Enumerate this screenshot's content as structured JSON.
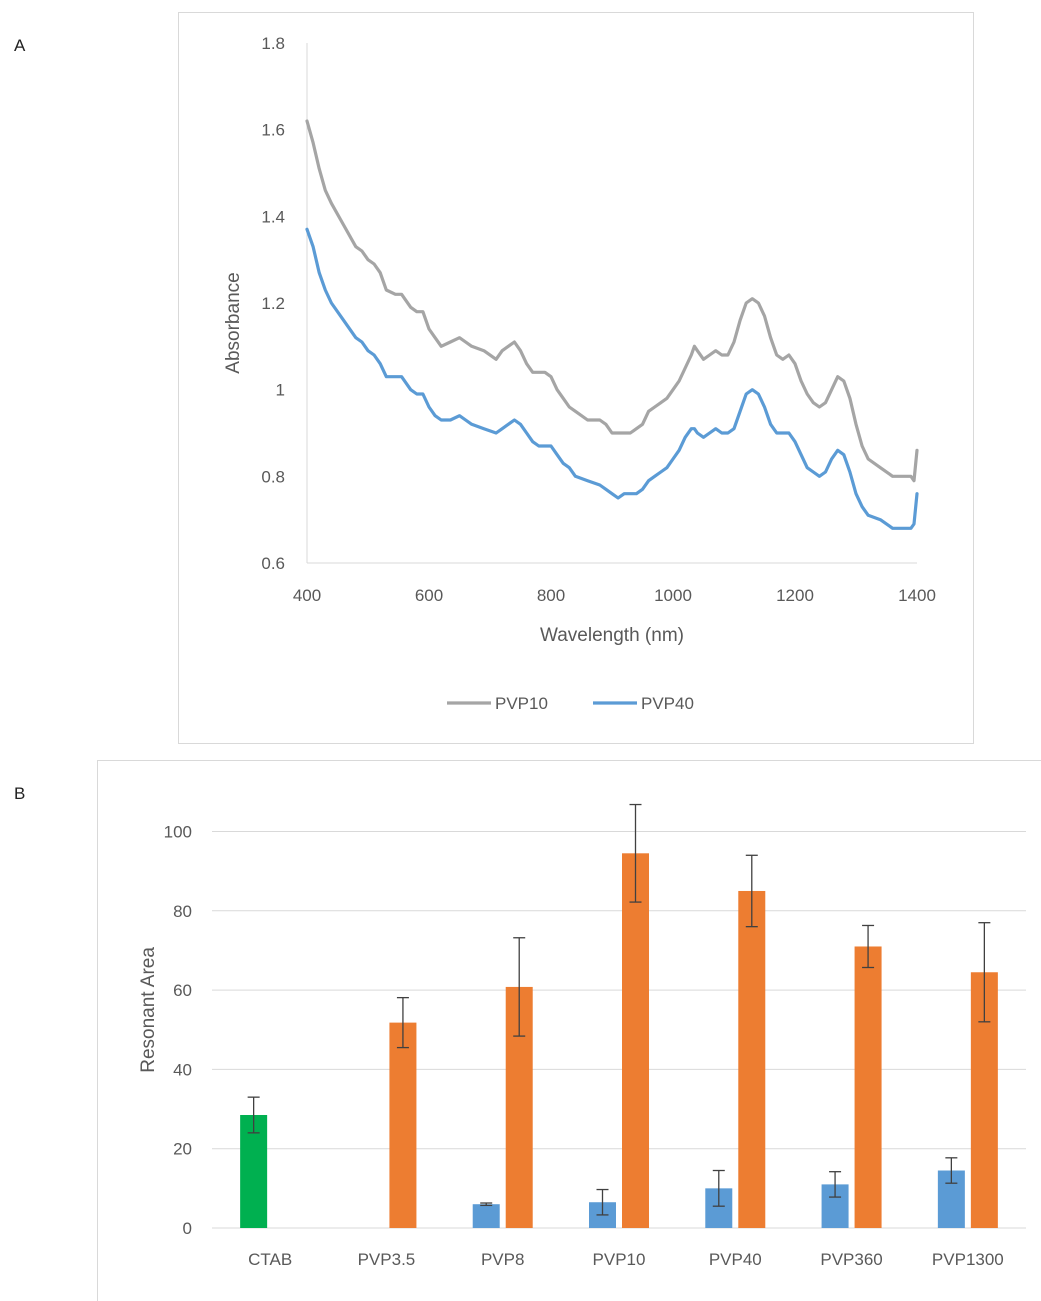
{
  "panels": [
    {
      "label": "A"
    },
    {
      "label": "B"
    }
  ],
  "chart_data": [
    {
      "type": "line",
      "title": "",
      "xlabel": "Wavelength (nm)",
      "ylabel": "Absorbance",
      "xlim": [
        400,
        1400
      ],
      "ylim": [
        0.6,
        1.8
      ],
      "xticks": [
        400,
        600,
        800,
        1000,
        1200,
        1400
      ],
      "yticks": [
        0.6,
        0.8,
        1,
        1.2,
        1.4,
        1.6,
        1.8
      ],
      "grid": false,
      "legend": "bottom",
      "series": [
        {
          "name": "PVP10",
          "color": "#a5a5a5",
          "x": [
            400,
            410,
            420,
            430,
            440,
            460,
            480,
            490,
            500,
            510,
            520,
            530,
            545,
            555,
            570,
            580,
            590,
            600,
            610,
            620,
            635,
            650,
            660,
            670,
            690,
            710,
            720,
            730,
            740,
            750,
            760,
            770,
            780,
            790,
            800,
            810,
            820,
            830,
            840,
            860,
            880,
            890,
            900,
            910,
            920,
            930,
            940,
            950,
            960,
            970,
            980,
            990,
            1000,
            1010,
            1020,
            1030,
            1035,
            1040,
            1050,
            1060,
            1070,
            1080,
            1090,
            1100,
            1110,
            1120,
            1130,
            1140,
            1150,
            1160,
            1170,
            1180,
            1190,
            1200,
            1210,
            1220,
            1230,
            1240,
            1250,
            1260,
            1270,
            1280,
            1290,
            1300,
            1310,
            1320,
            1340,
            1360,
            1370,
            1380,
            1390,
            1395,
            1400
          ],
          "y": [
            1.62,
            1.57,
            1.51,
            1.46,
            1.43,
            1.38,
            1.33,
            1.32,
            1.3,
            1.29,
            1.27,
            1.23,
            1.22,
            1.22,
            1.19,
            1.18,
            1.18,
            1.14,
            1.12,
            1.1,
            1.11,
            1.12,
            1.11,
            1.1,
            1.09,
            1.07,
            1.09,
            1.1,
            1.11,
            1.09,
            1.06,
            1.04,
            1.04,
            1.04,
            1.03,
            1.0,
            0.98,
            0.96,
            0.95,
            0.93,
            0.93,
            0.92,
            0.9,
            0.9,
            0.9,
            0.9,
            0.91,
            0.92,
            0.95,
            0.96,
            0.97,
            0.98,
            1.0,
            1.02,
            1.05,
            1.08,
            1.1,
            1.09,
            1.07,
            1.08,
            1.09,
            1.08,
            1.08,
            1.11,
            1.16,
            1.2,
            1.21,
            1.2,
            1.17,
            1.12,
            1.08,
            1.07,
            1.08,
            1.06,
            1.02,
            0.99,
            0.97,
            0.96,
            0.97,
            1.0,
            1.03,
            1.02,
            0.98,
            0.92,
            0.87,
            0.84,
            0.82,
            0.8,
            0.8,
            0.8,
            0.8,
            0.79,
            0.86
          ]
        },
        {
          "name": "PVP40",
          "color": "#5b9bd5",
          "x": [
            400,
            410,
            420,
            430,
            440,
            460,
            480,
            490,
            500,
            510,
            520,
            530,
            545,
            555,
            570,
            580,
            590,
            600,
            610,
            620,
            635,
            650,
            660,
            670,
            690,
            710,
            720,
            730,
            740,
            750,
            760,
            770,
            780,
            790,
            800,
            810,
            820,
            830,
            840,
            860,
            880,
            890,
            900,
            910,
            920,
            930,
            940,
            950,
            960,
            970,
            980,
            990,
            1000,
            1010,
            1020,
            1030,
            1035,
            1040,
            1050,
            1060,
            1070,
            1080,
            1090,
            1100,
            1110,
            1120,
            1130,
            1140,
            1150,
            1160,
            1170,
            1180,
            1190,
            1200,
            1210,
            1220,
            1230,
            1240,
            1250,
            1260,
            1270,
            1280,
            1290,
            1300,
            1310,
            1320,
            1340,
            1360,
            1370,
            1380,
            1390,
            1395,
            1400
          ],
          "y": [
            1.37,
            1.33,
            1.27,
            1.23,
            1.2,
            1.16,
            1.12,
            1.11,
            1.09,
            1.08,
            1.06,
            1.03,
            1.03,
            1.03,
            1.0,
            0.99,
            0.99,
            0.96,
            0.94,
            0.93,
            0.93,
            0.94,
            0.93,
            0.92,
            0.91,
            0.9,
            0.91,
            0.92,
            0.93,
            0.92,
            0.9,
            0.88,
            0.87,
            0.87,
            0.87,
            0.85,
            0.83,
            0.82,
            0.8,
            0.79,
            0.78,
            0.77,
            0.76,
            0.75,
            0.76,
            0.76,
            0.76,
            0.77,
            0.79,
            0.8,
            0.81,
            0.82,
            0.84,
            0.86,
            0.89,
            0.91,
            0.91,
            0.9,
            0.89,
            0.9,
            0.91,
            0.9,
            0.9,
            0.91,
            0.95,
            0.99,
            1.0,
            0.99,
            0.96,
            0.92,
            0.9,
            0.9,
            0.9,
            0.88,
            0.85,
            0.82,
            0.81,
            0.8,
            0.81,
            0.84,
            0.86,
            0.85,
            0.81,
            0.76,
            0.73,
            0.71,
            0.7,
            0.68,
            0.68,
            0.68,
            0.68,
            0.69,
            0.76
          ]
        }
      ]
    },
    {
      "type": "bar",
      "title": "",
      "xlabel": "",
      "ylabel": "Resonant Area",
      "ylim": [
        0,
        110
      ],
      "yticks": [
        0,
        20,
        40,
        60,
        80,
        100
      ],
      "grid": true,
      "categories": [
        "CTAB",
        "PVP3.5",
        "PVP8",
        "PVP10",
        "PVP40",
        "PVP360",
        "PVP1300"
      ],
      "series": [
        {
          "color": "#5b9bd5",
          "values": [
            28.5,
            0,
            6,
            6.5,
            10,
            11,
            14.5
          ],
          "errors": [
            4.5,
            0,
            0.3,
            3.2,
            4.5,
            3.2,
            3.2
          ],
          "point_colors": [
            "#00b050",
            null,
            null,
            null,
            null,
            null,
            null
          ]
        },
        {
          "color": "#ed7d31",
          "values": [
            0,
            51.8,
            60.8,
            94.5,
            85,
            71,
            64.5
          ],
          "errors": [
            0,
            6.3,
            12.4,
            12.3,
            9,
            5.3,
            12.5
          ]
        }
      ]
    }
  ]
}
